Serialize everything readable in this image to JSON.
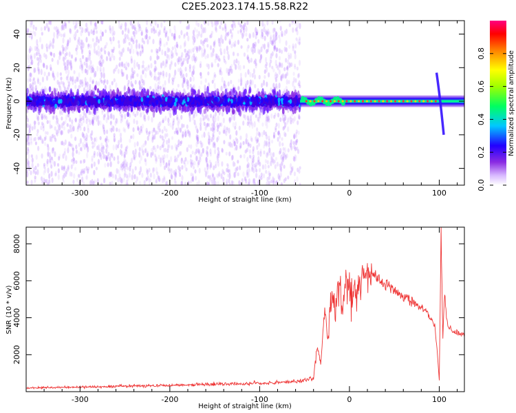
{
  "title": "C2E5.2023.174.15.58.R22",
  "chart_data": [
    {
      "type": "heatmap",
      "name": "spectrogram",
      "xlabel": "Height of straight line (km)",
      "ylabel": "Frequency (Hz)",
      "xlim": [
        -360,
        128
      ],
      "ylim": [
        -50,
        48
      ],
      "xticks": [
        -300,
        -200,
        -100,
        0,
        100
      ],
      "yticks": [
        -40,
        -20,
        0,
        20,
        40
      ],
      "colorbar": {
        "label": "Normalized spectral amplitude",
        "range": [
          0,
          1
        ],
        "ticks": [
          "0.0",
          "0.2",
          "0.4",
          "0.6",
          "0.8"
        ],
        "colormap": "rainbow"
      },
      "features": {
        "noise_region_x": [
          -360,
          -55
        ],
        "signal_band_x": [
          -55,
          128
        ],
        "signal_band_freq": 0,
        "transient_x": 98
      }
    },
    {
      "type": "line",
      "name": "snr",
      "xlabel": "Height of straight line (km)",
      "ylabel": "SNR (10 * v/v)",
      "xlim": [
        -360,
        128
      ],
      "ylim": [
        0,
        8900
      ],
      "xticks": [
        -300,
        -200,
        -100,
        0,
        100
      ],
      "yticks": [
        2000,
        4000,
        6000,
        8000
      ],
      "line_color": "#ee3333",
      "series": [
        {
          "x": [
            -360,
            -300,
            -250,
            -200,
            -150,
            -100,
            -60,
            -40,
            -36,
            -32,
            -28,
            -24,
            -20,
            -16,
            -12,
            -8,
            -4,
            0,
            4,
            8,
            12,
            16,
            20,
            25,
            28,
            35,
            45,
            55,
            65,
            75,
            85,
            95,
            98,
            100,
            102,
            104,
            106,
            108,
            110,
            115,
            120,
            128
          ],
          "y": [
            200,
            250,
            300,
            350,
            400,
            450,
            550,
            700,
            2500,
            1500,
            4200,
            3000,
            5500,
            4000,
            6200,
            4500,
            5800,
            5000,
            5300,
            5600,
            5800,
            5900,
            6000,
            6400,
            6300,
            6000,
            5700,
            5300,
            5000,
            4700,
            4400,
            3600,
            2000,
            600,
            8600,
            3000,
            5500,
            4000,
            3500,
            3300,
            3200,
            3000
          ]
        }
      ]
    }
  ]
}
